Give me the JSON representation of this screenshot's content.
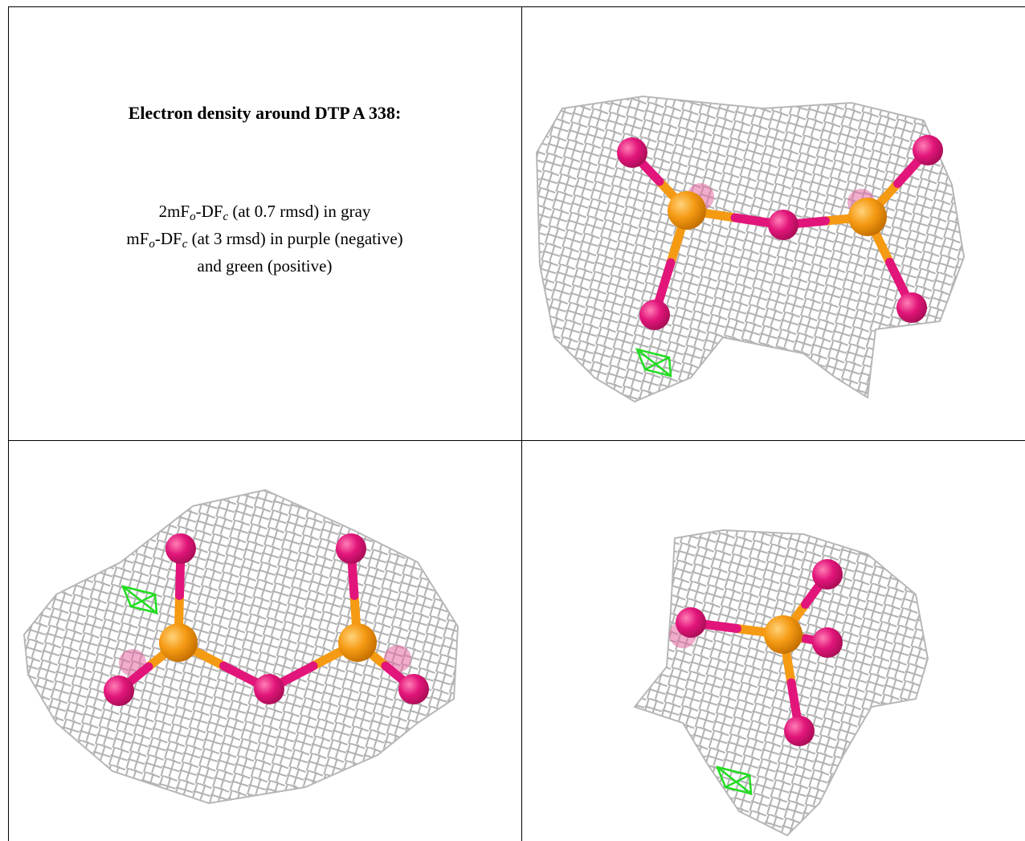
{
  "title": "Electron density around DTP A 338:",
  "legend": [
    [
      "2mF",
      "o",
      "-DF",
      "c",
      " (at 0.7 rmsd) in gray"
    ],
    [
      "mF",
      "o",
      "-DF",
      "c",
      " (at 3 rmsd) in purple (negative)"
    ],
    [
      "and green (positive)"
    ]
  ]
}
